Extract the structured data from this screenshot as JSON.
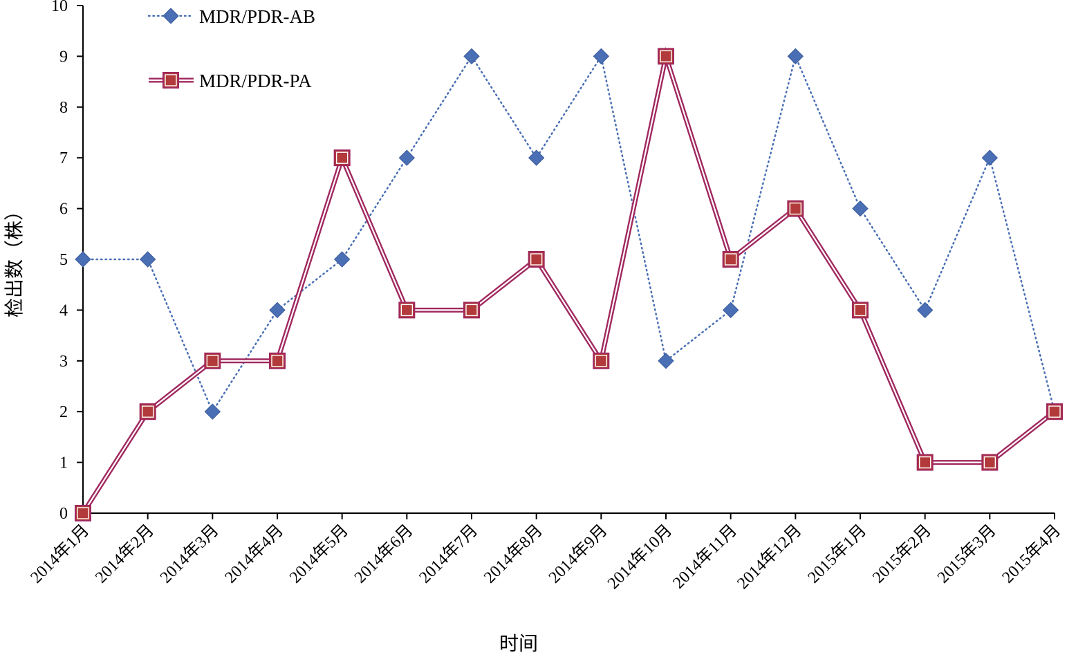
{
  "chart_data": {
    "type": "line",
    "title": "",
    "xlabel": "时间",
    "ylabel": "检出数（株）",
    "ylim": [
      0,
      10
    ],
    "yticks": [
      0,
      1,
      2,
      3,
      4,
      5,
      6,
      7,
      8,
      9,
      10
    ],
    "grid": false,
    "legend_position": "top-left",
    "categories": [
      "2014年1月",
      "2014年2月",
      "2014年3月",
      "2014年4月",
      "2014年5月",
      "2014年6月",
      "2014年7月",
      "2014年8月",
      "2014年9月",
      "2014年10月",
      "2014年11月",
      "2014年12月",
      "2015年1月",
      "2015年2月",
      "2015年3月",
      "2015年4月"
    ],
    "series": [
      {
        "name": "MDR/PDR-AB",
        "values": [
          5,
          5,
          2,
          4,
          5,
          7,
          9,
          7,
          9,
          3,
          4,
          9,
          6,
          4,
          7,
          2
        ],
        "color": "#4a6fb5",
        "line_style": "dotted",
        "marker": "diamond"
      },
      {
        "name": "MDR/PDR-PA",
        "values": [
          0,
          2,
          3,
          3,
          7,
          4,
          4,
          5,
          3,
          9,
          5,
          6,
          4,
          1,
          1,
          2
        ],
        "color": "#a0285f",
        "marker_fill": "#b23a3a",
        "line_style": "double",
        "marker": "square"
      }
    ]
  }
}
